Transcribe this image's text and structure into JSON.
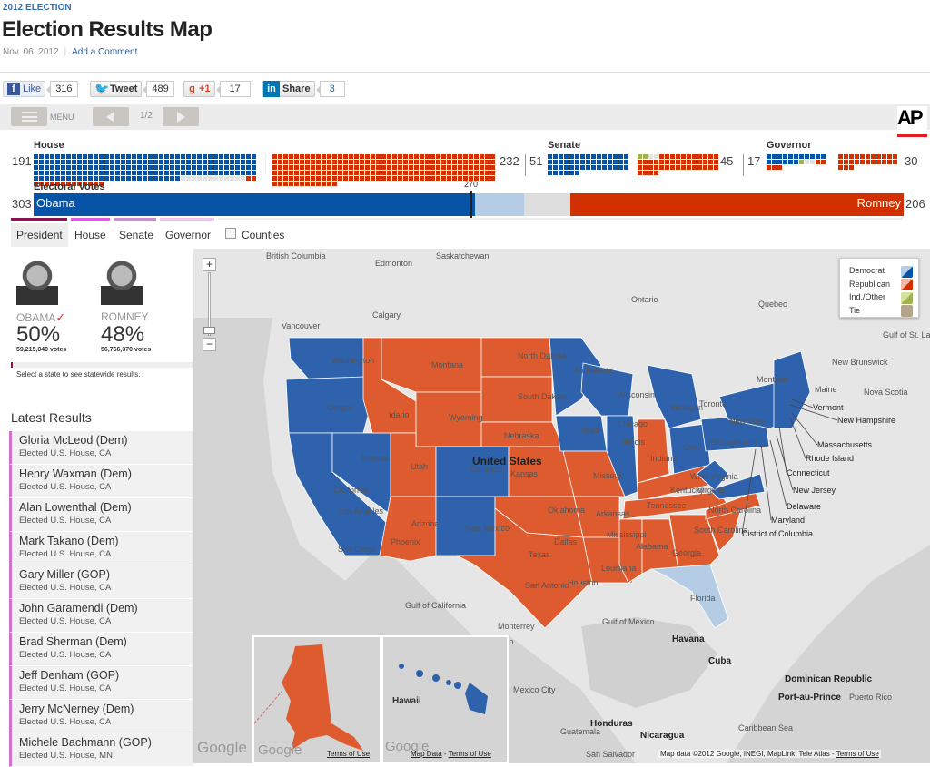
{
  "header": {
    "kicker": "2012 ELECTION",
    "title": "Election Results Map",
    "date": "Nov. 06, 2012",
    "comment_link": "Add a Comment"
  },
  "social": {
    "like_label": "Like",
    "like_count": "316",
    "tweet_label": "Tweet",
    "tweet_count": "489",
    "gplus_label": "+1",
    "gplus_count": "17",
    "share_label": "Share",
    "share_count": "3"
  },
  "toolbar": {
    "menu_label": "MENU",
    "page": "1/2",
    "logo": "AP"
  },
  "summary": {
    "house": {
      "label": "House",
      "dem": 191,
      "rep": 232,
      "total": 435
    },
    "senate": {
      "label": "Senate",
      "dem": 51,
      "rep": 45,
      "other": 2,
      "total": 100
    },
    "governor": {
      "label": "Governor",
      "dem": 17,
      "rep": 30,
      "other": 1,
      "total": 50
    },
    "electoral": {
      "label": "Electoral Votes",
      "dem": 303,
      "rep": 206,
      "threshold": "270",
      "dem_name": "Obama",
      "rep_name": "Romney",
      "total": 538
    }
  },
  "colors": {
    "dem": "#0754a6",
    "rep": "#d13100",
    "dem_light": "#b5cde4",
    "other": "#9fb450",
    "tie": "#b3a58b",
    "uncalled": "#e3e3e3",
    "map_dem": "#2e62ad",
    "map_rep": "#de5b30"
  },
  "tabs": [
    {
      "label": "President",
      "active": true
    },
    {
      "label": "House"
    },
    {
      "label": "Senate"
    },
    {
      "label": "Governor"
    }
  ],
  "counties_label": "Counties",
  "candidates": [
    {
      "name": "OBAMA",
      "winner": true,
      "pct": "50%",
      "votes": "59,215,040 votes"
    },
    {
      "name": "ROMNEY",
      "winner": false,
      "pct": "48%",
      "votes": "56,766,370 votes"
    }
  ],
  "select_hint": "Select a state to see statewide results.",
  "latest": {
    "title": "Latest Results",
    "items": [
      {
        "name": "Gloria McLeod (Dem)",
        "status": "Elected U.S. House, CA"
      },
      {
        "name": "Henry Waxman (Dem)",
        "status": "Elected U.S. House, CA"
      },
      {
        "name": "Alan Lowenthal (Dem)",
        "status": "Elected U.S. House, CA"
      },
      {
        "name": "Mark Takano (Dem)",
        "status": "Elected U.S. House, CA"
      },
      {
        "name": "Gary Miller (GOP)",
        "status": "Elected U.S. House, CA"
      },
      {
        "name": "John Garamendi (Dem)",
        "status": "Elected U.S. House, CA"
      },
      {
        "name": "Brad Sherman (Dem)",
        "status": "Elected U.S. House, CA"
      },
      {
        "name": "Jeff Denham (GOP)",
        "status": "Elected U.S. House, CA"
      },
      {
        "name": "Jerry McNerney (Dem)",
        "status": "Elected U.S. House, CA"
      },
      {
        "name": "Michele Bachmann (GOP)",
        "status": "Elected U.S. House, MN"
      }
    ]
  },
  "legend": [
    "Democrat",
    "Republican",
    "Ind./Other",
    "Tie"
  ],
  "map": {
    "zoom_in": "+",
    "zoom_out": "−",
    "country_label": "United States",
    "states": [
      "Washington",
      "Oregon",
      "California",
      "Nevada",
      "Idaho",
      "Montana",
      "Wyoming",
      "Utah",
      "Arizona",
      "Colorado",
      "New Mexico",
      "North Dakota",
      "South Dakota",
      "Nebraska",
      "Kansas",
      "Oklahoma",
      "Texas",
      "Minnesota",
      "Iowa",
      "Missouri",
      "Arkansas",
      "Louisiana",
      "Wisconsin",
      "Illinois",
      "Michigan",
      "Indiana",
      "Ohio",
      "Kentucky",
      "Tennessee",
      "Mississippi",
      "Alabama",
      "Georgia",
      "Florida",
      "South Carolina",
      "North Carolina",
      "Virginia",
      "West Virginia",
      "Pennsylvania",
      "New York",
      "Maine"
    ],
    "callouts": [
      "Vermont",
      "New Hampshire",
      "Massachusetts",
      "Rhode Island",
      "Connecticut",
      "New Jersey",
      "Delaware",
      "Maryland",
      "District of Columbia"
    ],
    "places": [
      "British Columbia",
      "Edmonton",
      "Saskatchewan",
      "Calgary",
      "Vancouver",
      "Ontario",
      "Quebec",
      "Montreal",
      "Toronto",
      "New Brunswick",
      "Nova Scotia",
      "Gulf of St. Lawrence",
      "Los Angeles",
      "San Diego",
      "Phoenix",
      "Dallas",
      "Houston",
      "San Antonio",
      "Chicago",
      "Monterrey",
      "Mexico",
      "Gulf of California",
      "Gulf of Mexico",
      "Havana",
      "Cuba",
      "Dominican Republic",
      "Port-au-Prince",
      "Puerto Rico",
      "Mexico City",
      "Guatemala",
      "Honduras",
      "Nicaragua",
      "San Salvador",
      "Caribbean Sea",
      "Hawaii"
    ],
    "attribution": "Map data ©2012 Google, INEGI, MapLink, Tele Atlas",
    "terms": "Terms of Use",
    "map_data": "Map Data",
    "google": "Google"
  }
}
